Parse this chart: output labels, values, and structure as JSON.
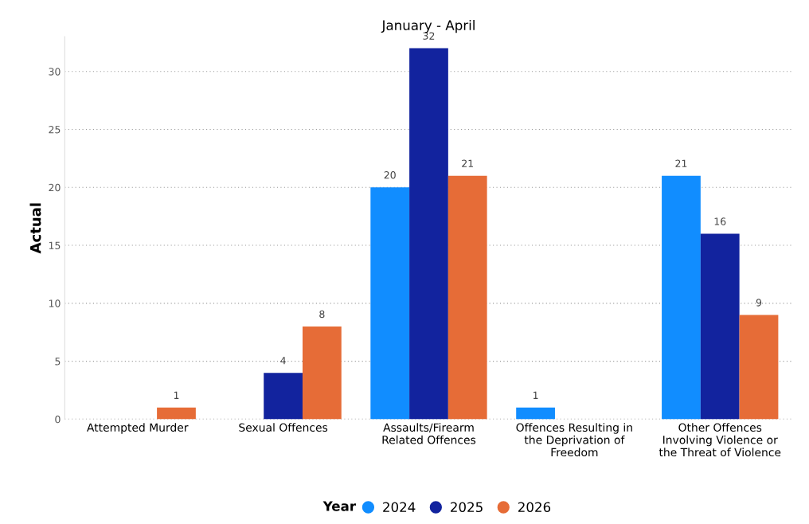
{
  "chart_data": {
    "type": "bar",
    "title": "January - April",
    "ylabel": "Actual",
    "legend_title": "Year",
    "categories": [
      "Attempted Murder",
      "Sexual Offences",
      "Assaults/Firearm\nRelated Offences",
      "Offences Resulting in\nthe Deprivation of\nFreedom",
      "Other Offences\nInvolving Violence or\nthe Threat of Violence"
    ],
    "series": [
      {
        "name": "2024",
        "color": "#118dff",
        "values": [
          null,
          null,
          20,
          1,
          21
        ]
      },
      {
        "name": "2025",
        "color": "#12239e",
        "values": [
          null,
          4,
          32,
          null,
          16
        ]
      },
      {
        "name": "2026",
        "color": "#e66c37",
        "values": [
          1,
          8,
          21,
          null,
          9
        ]
      }
    ],
    "ylim": [
      0,
      33
    ],
    "yticks": [
      0,
      5,
      10,
      15,
      20,
      25,
      30
    ],
    "grid": "y",
    "legend": "bottom",
    "data_labels": true
  }
}
